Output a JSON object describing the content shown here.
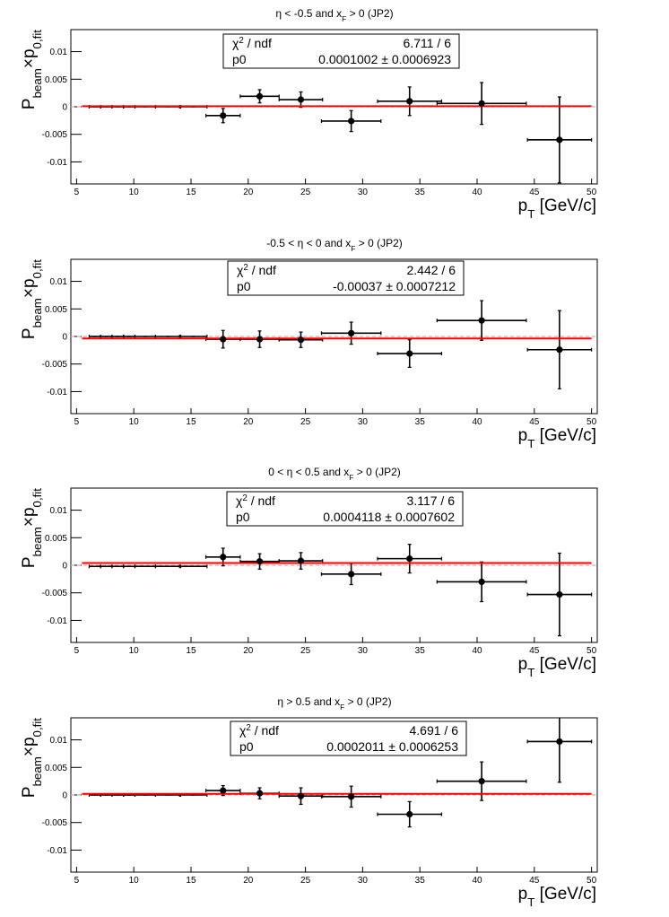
{
  "chart_data": [
    {
      "type": "scatter",
      "title": [
        "η < -0.5 and x",
        "F",
        " > 0 (JP2)"
      ],
      "y_label": [
        "P",
        "beam",
        "×p",
        "0,fit"
      ],
      "x_label": [
        "p",
        "T",
        " [GeV/c]"
      ],
      "xlim": [
        4.5,
        50.5
      ],
      "xticks": [
        5,
        10,
        15,
        20,
        25,
        30,
        35,
        40,
        45,
        50
      ],
      "ylim": [
        -0.014,
        0.014
      ],
      "yticks": [
        0.01,
        0.005,
        0,
        -0.005,
        -0.01
      ],
      "reference_line": 0,
      "series": [
        {
          "color": "#000000",
          "x": [
            6.6,
            7.6,
            8.6,
            9.6,
            11,
            13,
            15.2,
            17.8,
            21,
            24.6,
            29,
            34.1,
            40.4,
            47.2
          ],
          "xerr": [
            0.5,
            0.5,
            0.5,
            0.5,
            0.9,
            1.1,
            1.2,
            1.5,
            1.7,
            1.9,
            2.6,
            2.8,
            3.9,
            2.8
          ],
          "values": [
            0,
            0,
            0,
            0,
            0,
            0,
            0,
            -0.0016,
            0.0019,
            0.0013,
            -0.0026,
            0.001,
            0.0006,
            -0.006
          ],
          "yerr": [
            0,
            0,
            0,
            0,
            0,
            0,
            0,
            0.0013,
            0.0012,
            0.0014,
            0.0019,
            0.0026,
            0.0038,
            0.0078
          ]
        }
      ],
      "fit": {
        "color": "#ff0000",
        "p0": 0.0001002,
        "p0_err": 0.0006923,
        "label": "0.0001002 ± 0.0006923"
      },
      "stats": {
        "chi2_label": [
          "χ",
          "2",
          " / ndf"
        ],
        "chi2_value": "6.711 / 6",
        "p0_label": "p0"
      }
    },
    {
      "type": "scatter",
      "title": [
        "-0.5 < η < 0 and x",
        "F",
        " > 0 (JP2)"
      ],
      "y_label": [
        "P",
        "beam",
        "×p",
        "0,fit"
      ],
      "x_label": [
        "p",
        "T",
        " [GeV/c]"
      ],
      "xlim": [
        4.5,
        50.5
      ],
      "xticks": [
        5,
        10,
        15,
        20,
        25,
        30,
        35,
        40,
        45,
        50
      ],
      "ylim": [
        -0.014,
        0.014
      ],
      "yticks": [
        0.01,
        0.005,
        0,
        -0.005,
        -0.01
      ],
      "reference_line": 0,
      "series": [
        {
          "color": "#000000",
          "x": [
            6.6,
            7.6,
            8.6,
            9.6,
            11,
            13,
            15.2,
            17.8,
            21,
            24.6,
            29,
            34.1,
            40.4,
            47.2
          ],
          "xerr": [
            0.5,
            0.5,
            0.5,
            0.5,
            0.9,
            1.1,
            1.2,
            1.5,
            1.7,
            1.9,
            2.6,
            2.8,
            3.9,
            2.8
          ],
          "values": [
            0,
            0,
            0,
            0,
            0,
            0,
            0,
            -0.0005,
            -0.0005,
            -0.0006,
            0.0006,
            -0.0031,
            0.0029,
            -0.0024
          ],
          "yerr": [
            0,
            0,
            0,
            0,
            0,
            0,
            0,
            0.0016,
            0.0015,
            0.0014,
            0.002,
            0.0025,
            0.0036,
            0.0071
          ]
        }
      ],
      "fit": {
        "color": "#ff0000",
        "p0": -0.00037,
        "p0_err": 0.0007212,
        "label": "-0.00037 ± 0.0007212"
      },
      "stats": {
        "chi2_label": [
          "χ",
          "2",
          " / ndf"
        ],
        "chi2_value": "2.442 / 6",
        "p0_label": "p0"
      }
    },
    {
      "type": "scatter",
      "title": [
        "0 < η < 0.5 and x",
        "F",
        " > 0 (JP2)"
      ],
      "y_label": [
        "P",
        "beam",
        "×p",
        "0,fit"
      ],
      "x_label": [
        "p",
        "T",
        " [GeV/c]"
      ],
      "xlim": [
        4.5,
        50.5
      ],
      "xticks": [
        5,
        10,
        15,
        20,
        25,
        30,
        35,
        40,
        45,
        50
      ],
      "ylim": [
        -0.014,
        0.014
      ],
      "yticks": [
        0.01,
        0.005,
        0,
        -0.005,
        -0.01
      ],
      "reference_line": 0,
      "series": [
        {
          "color": "#000000",
          "x": [
            6.6,
            7.6,
            8.6,
            9.6,
            11,
            13,
            15.2,
            17.8,
            21,
            24.6,
            29,
            34.1,
            40.4,
            47.2
          ],
          "xerr": [
            0.5,
            0.5,
            0.5,
            0.5,
            0.9,
            1.1,
            1.2,
            1.5,
            1.7,
            1.9,
            2.6,
            2.8,
            3.9,
            2.8
          ],
          "values": [
            -0.0002,
            -0.0002,
            -0.0002,
            -0.0002,
            -0.0002,
            -0.0002,
            -0.0002,
            0.0015,
            0.0007,
            0.0008,
            -0.0016,
            0.0012,
            -0.003,
            -0.0053
          ],
          "yerr": [
            0,
            0,
            0,
            0,
            0,
            0,
            0,
            0.0016,
            0.0014,
            0.0015,
            0.0019,
            0.0026,
            0.0036,
            0.0075
          ]
        }
      ],
      "fit": {
        "color": "#ff0000",
        "p0": 0.0004118,
        "p0_err": 0.0007602,
        "label": "0.0004118 ± 0.0007602"
      },
      "stats": {
        "chi2_label": [
          "χ",
          "2",
          " / ndf"
        ],
        "chi2_value": "3.117 / 6",
        "p0_label": "p0"
      }
    },
    {
      "type": "scatter",
      "title": [
        "η > 0.5 and x",
        "F",
        " > 0 (JP2)"
      ],
      "y_label": [
        "P",
        "beam",
        "×p",
        "0,fit"
      ],
      "x_label": [
        "p",
        "T",
        " [GeV/c]"
      ],
      "xlim": [
        4.5,
        50.5
      ],
      "xticks": [
        5,
        10,
        15,
        20,
        25,
        30,
        35,
        40,
        45,
        50
      ],
      "ylim": [
        -0.014,
        0.014
      ],
      "yticks": [
        0.01,
        0.005,
        0,
        -0.005,
        -0.01
      ],
      "reference_line": 0,
      "series": [
        {
          "color": "#000000",
          "x": [
            6.6,
            7.6,
            8.6,
            9.6,
            11,
            13,
            15.2,
            17.8,
            21,
            24.6,
            29,
            34.1,
            40.4,
            47.2
          ],
          "xerr": [
            0.5,
            0.5,
            0.5,
            0.5,
            0.9,
            1.1,
            1.2,
            1.5,
            1.7,
            1.9,
            2.6,
            2.8,
            3.9,
            2.8
          ],
          "values": [
            0,
            0,
            0,
            0,
            0,
            0,
            0,
            0.0008,
            0.0003,
            -0.0002,
            -0.0003,
            -0.0035,
            0.0025,
            0.0097
          ],
          "yerr": [
            0,
            0,
            0,
            0,
            0,
            0,
            0,
            0.0009,
            0.001,
            0.0015,
            0.0019,
            0.0023,
            0.0035,
            0.0074
          ]
        }
      ],
      "fit": {
        "color": "#ff0000",
        "p0": 0.0002011,
        "p0_err": 0.0006253,
        "label": "0.0002011 ± 0.0006253"
      },
      "stats": {
        "chi2_label": [
          "χ",
          "2",
          " / ndf"
        ],
        "chi2_value": "4.691 / 6",
        "p0_label": "p0"
      }
    }
  ]
}
